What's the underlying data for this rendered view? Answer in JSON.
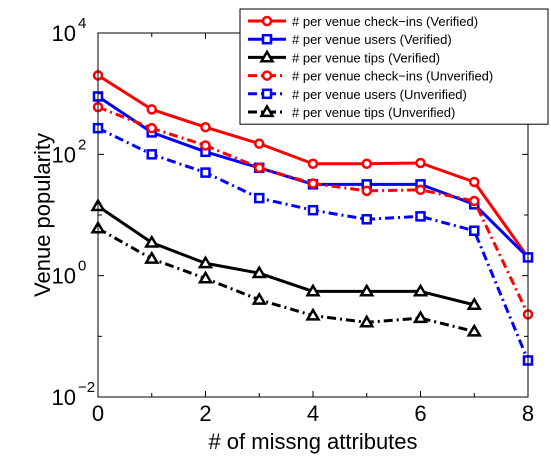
{
  "chart_data": {
    "type": "line",
    "title": "",
    "xlabel": "# of missng attributes",
    "ylabel": "Venue popularity",
    "x_ticks": [
      "0",
      "2",
      "4",
      "6",
      "8"
    ],
    "xlim": [
      0,
      8
    ],
    "ylim": [
      0.01,
      10000
    ],
    "y_scale": "log",
    "y_ticks": [
      {
        "value": 0.01,
        "base": "10",
        "exp": "−2"
      },
      {
        "value": 1,
        "base": "10",
        "exp": "0"
      },
      {
        "value": 100,
        "base": "10",
        "exp": "2"
      },
      {
        "value": 10000,
        "base": "10",
        "exp": "4"
      }
    ],
    "grid": false,
    "legend_position": "top-right",
    "series": [
      {
        "name": "# per venue check−ins (Verified)",
        "color": "#ff0000",
        "line": "solid",
        "marker": "circle",
        "x": [
          0,
          1,
          2,
          3,
          4,
          5,
          6,
          7,
          8
        ],
        "y": [
          2000,
          550,
          280,
          150,
          70,
          70,
          72,
          35,
          2
        ]
      },
      {
        "name": "# per venue users (Verified)",
        "color": "#0000ff",
        "line": "solid",
        "marker": "square",
        "x": [
          0,
          1,
          2,
          3,
          4,
          5,
          6,
          7,
          8
        ],
        "y": [
          900,
          230,
          110,
          60,
          32,
          32,
          32,
          15,
          2
        ]
      },
      {
        "name": "# per venue tips (Verified)",
        "color": "#000000",
        "line": "solid",
        "marker": "triangle",
        "x": [
          0,
          1,
          2,
          3,
          4,
          5,
          6,
          7
        ],
        "y": [
          14,
          3.5,
          1.6,
          1.1,
          0.55,
          0.55,
          0.55,
          0.33
        ]
      },
      {
        "name": "# per venue check−ins (Unverified)",
        "color": "#ff0000",
        "line": "dashdot",
        "marker": "circle",
        "x": [
          0,
          1,
          2,
          3,
          4,
          5,
          6,
          7,
          8
        ],
        "y": [
          600,
          270,
          140,
          60,
          33,
          25,
          26,
          17,
          0.23
        ]
      },
      {
        "name": "# per venue users (Unverified)",
        "color": "#0000ff",
        "line": "dashdot",
        "marker": "square",
        "x": [
          0,
          1,
          2,
          3,
          4,
          5,
          6,
          7,
          8
        ],
        "y": [
          270,
          100,
          50,
          19,
          12,
          8.5,
          9.5,
          5.5,
          0.04
        ]
      },
      {
        "name": "# per venue tips (Unverified)",
        "color": "#000000",
        "line": "dashdot",
        "marker": "triangle",
        "x": [
          0,
          1,
          2,
          3,
          4,
          5,
          6,
          7
        ],
        "y": [
          6,
          1.9,
          0.9,
          0.4,
          0.22,
          0.17,
          0.2,
          0.12
        ]
      }
    ]
  }
}
